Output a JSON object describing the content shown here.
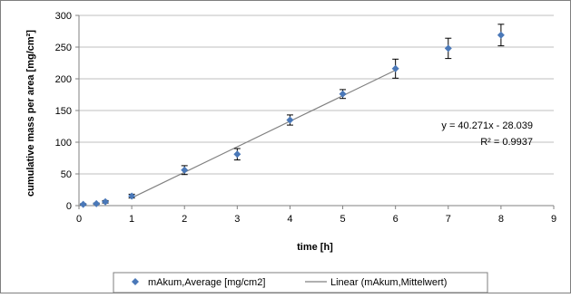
{
  "chart_data": {
    "type": "scatter",
    "xlabel": "time [h]",
    "ylabel": "cumulative mass per area [mg/cm²]",
    "xlim": [
      0,
      9
    ],
    "ylim": [
      0,
      300
    ],
    "x_ticks": [
      0,
      1,
      2,
      3,
      4,
      5,
      6,
      7,
      8,
      9
    ],
    "y_ticks": [
      0,
      50,
      100,
      150,
      200,
      250,
      300
    ],
    "x_tick_labels": [
      "0",
      "1",
      "2",
      "3",
      "4",
      "5",
      "6",
      "7",
      "8",
      "9"
    ],
    "y_tick_labels": [
      "0",
      "50",
      "100",
      "150",
      "200",
      "250",
      "300"
    ],
    "grid": "horizontal",
    "legend_position": "bottom",
    "series": [
      {
        "name": "mAkum,Average [mg/cm2]",
        "marker": "diamond",
        "color": "#4a78b8",
        "x": [
          0.08,
          0.33,
          0.5,
          1,
          2,
          3,
          4,
          5,
          6,
          7,
          8
        ],
        "y": [
          2,
          3,
          6,
          15,
          56,
          81,
          135,
          176,
          216,
          248,
          269
        ],
        "err": [
          1,
          1,
          2,
          3,
          7,
          9,
          8,
          7,
          15,
          16,
          17
        ]
      },
      {
        "name": "Linear (mAkum,Mittelwert)",
        "type": "line",
        "color": "#808080",
        "slope": 40.271,
        "intercept": -28.039,
        "x_range": [
          1,
          6
        ]
      }
    ],
    "annotations": {
      "equation": "y = 40.271x - 28.039",
      "r_squared": "R² = 0.9937"
    }
  }
}
